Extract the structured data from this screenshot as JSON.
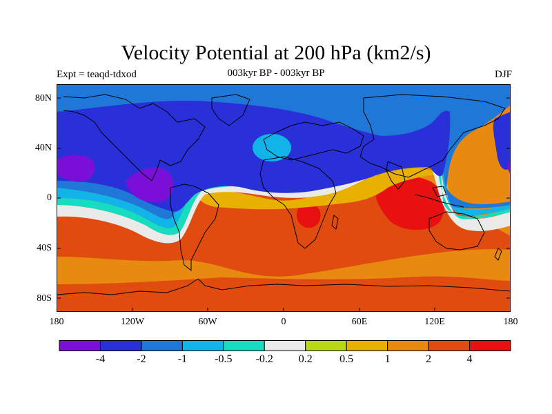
{
  "title": "Velocity Potential at 200 hPa (km2/s)",
  "subtitle_left": "Expt = teaqd-tdxod",
  "subtitle_center": "003kyr BP - 003kyr BP",
  "subtitle_right": "DJF",
  "lat_labels": [
    "80N",
    "40N",
    "0",
    "40S",
    "80S"
  ],
  "lon_labels": [
    "180",
    "120W",
    "60W",
    "0",
    "60E",
    "120E",
    "180"
  ],
  "colorbar": {
    "colors": [
      "#7a10d8",
      "#2a30d8",
      "#1f78d8",
      "#10b4e8",
      "#18dcc0",
      "#eaeaea",
      "#b8d818",
      "#e8b000",
      "#e88a10",
      "#e04c10",
      "#e81010"
    ],
    "labels": [
      "-4",
      "-2",
      "-1",
      "-0.5",
      "-0.2",
      "0.2",
      "0.5",
      "1",
      "2",
      "4"
    ]
  },
  "colors": {
    "violet": "#7a10d8",
    "blue": "#2a30d8",
    "mid_blue": "#1f78d8",
    "light_blue": "#10b4e8",
    "cyan": "#18dcc0",
    "white": "#eaeaea",
    "yellow": "#e8b000",
    "orange": "#e88a10",
    "red_orange": "#e04c10",
    "red": "#e81010"
  }
}
